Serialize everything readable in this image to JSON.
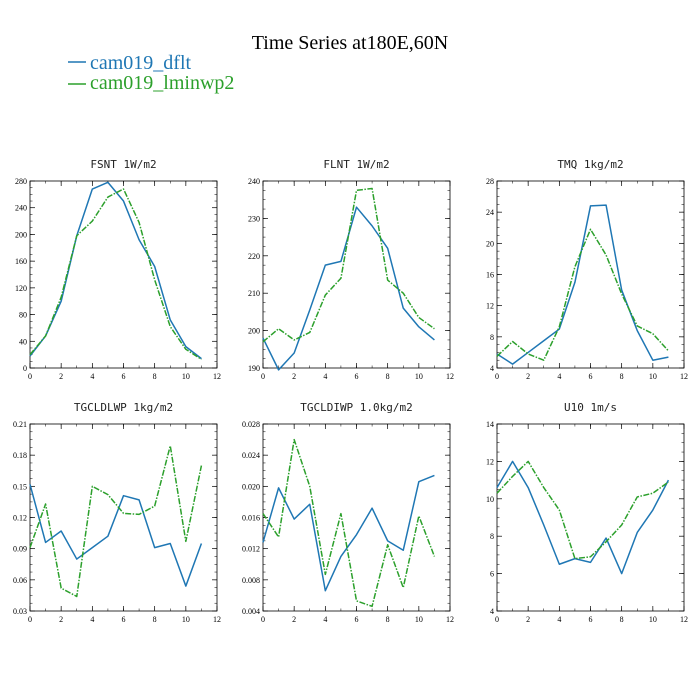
{
  "figure": {
    "title": "Time Series at180E,60N",
    "legend": [
      {
        "label": "cam019_dflt",
        "color": "#1f77b4",
        "dash": "solid"
      },
      {
        "label": "cam019_lminwp2",
        "color": "#2ca02c",
        "dash": "dashdot"
      }
    ]
  },
  "chart_data": [
    {
      "type": "line",
      "title": "FSNT   1W/m2",
      "x": [
        0,
        1,
        2,
        3,
        4,
        5,
        6,
        7,
        8,
        9,
        10,
        11
      ],
      "xlim": [
        0,
        12
      ],
      "xticks": [
        0,
        2,
        4,
        6,
        8,
        10,
        12
      ],
      "ylim": [
        0,
        280
      ],
      "yticks": [
        0,
        40,
        80,
        120,
        160,
        200,
        240,
        280
      ],
      "series": [
        {
          "name": "cam019_dflt",
          "values": [
            18,
            48,
            100,
            198,
            268,
            278,
            250,
            192,
            152,
            72,
            32,
            14
          ]
        },
        {
          "name": "cam019_lminwp2",
          "values": [
            20,
            48,
            106,
            198,
            220,
            256,
            268,
            218,
            132,
            62,
            28,
            13
          ]
        }
      ]
    },
    {
      "type": "line",
      "title": "FLNT   1W/m2",
      "x": [
        0,
        1,
        2,
        3,
        4,
        5,
        6,
        7,
        8,
        9,
        10,
        11
      ],
      "xlim": [
        0,
        12
      ],
      "xticks": [
        0,
        2,
        4,
        6,
        8,
        10,
        12
      ],
      "ylim": [
        190,
        240
      ],
      "yticks": [
        190,
        200,
        210,
        220,
        230,
        240
      ],
      "series": [
        {
          "name": "cam019_dflt",
          "values": [
            198,
            189.5,
            194,
            205.5,
            217.5,
            218.5,
            233,
            228,
            222,
            206,
            201,
            197.5
          ]
        },
        {
          "name": "cam019_lminwp2",
          "values": [
            197,
            200.5,
            197.5,
            199.5,
            209.5,
            214,
            237.5,
            238,
            213.5,
            210,
            203.5,
            200.5
          ]
        }
      ]
    },
    {
      "type": "line",
      "title": "TMQ   1kg/m2",
      "x": [
        0,
        1,
        2,
        3,
        4,
        5,
        6,
        7,
        8,
        9,
        10,
        11
      ],
      "xlim": [
        0,
        12
      ],
      "xticks": [
        0,
        2,
        4,
        6,
        8,
        10,
        12
      ],
      "ylim": [
        4,
        28
      ],
      "yticks": [
        4,
        8,
        12,
        16,
        20,
        24,
        28
      ],
      "series": [
        {
          "name": "cam019_dflt",
          "values": [
            5.8,
            4.5,
            6,
            7.5,
            9,
            15,
            24.8,
            24.9,
            14,
            8.8,
            5,
            5.4
          ]
        },
        {
          "name": "cam019_lminwp2",
          "values": [
            5.5,
            7.4,
            5.8,
            5,
            9.3,
            17,
            21.8,
            18.5,
            13.5,
            9.4,
            8.4,
            6.2
          ]
        }
      ]
    },
    {
      "type": "line",
      "title": "TGCLDLWP   1kg/m2",
      "x": [
        0,
        1,
        2,
        3,
        4,
        5,
        6,
        7,
        8,
        9,
        10,
        11
      ],
      "xlim": [
        0,
        12
      ],
      "xticks": [
        0,
        2,
        4,
        6,
        8,
        10,
        12
      ],
      "ylim": [
        0.03,
        0.21
      ],
      "yticks": [
        0.03,
        0.06,
        0.09,
        0.12,
        0.15,
        0.18,
        0.21
      ],
      "series": [
        {
          "name": "cam019_dflt",
          "values": [
            0.152,
            0.096,
            0.107,
            0.08,
            0.091,
            0.102,
            0.141,
            0.137,
            0.091,
            0.095,
            0.054,
            0.095
          ]
        },
        {
          "name": "cam019_lminwp2",
          "values": [
            0.091,
            0.133,
            0.052,
            0.044,
            0.15,
            0.142,
            0.124,
            0.123,
            0.131,
            0.189,
            0.097,
            0.17
          ]
        }
      ]
    },
    {
      "type": "line",
      "title": "TGCLDIWP   1.0kg/m2",
      "x": [
        0,
        1,
        2,
        3,
        4,
        5,
        6,
        7,
        8,
        9,
        10,
        11
      ],
      "xlim": [
        0,
        12
      ],
      "xticks": [
        0,
        2,
        4,
        6,
        8,
        10,
        12
      ],
      "ylim": [
        0.004,
        0.028
      ],
      "yticks": [
        0.004,
        0.008,
        0.012,
        0.016,
        0.02,
        0.024,
        0.028
      ],
      "series": [
        {
          "name": "cam019_dflt",
          "values": [
            0.0128,
            0.0198,
            0.0158,
            0.0177,
            0.0066,
            0.011,
            0.0138,
            0.0172,
            0.013,
            0.0118,
            0.0206,
            0.0214
          ]
        },
        {
          "name": "cam019_lminwp2",
          "values": [
            0.0165,
            0.0135,
            0.026,
            0.02,
            0.0087,
            0.0165,
            0.0053,
            0.0046,
            0.0125,
            0.007,
            0.0162,
            0.011
          ]
        }
      ]
    },
    {
      "type": "line",
      "title": "U10   1m/s",
      "x": [
        0,
        1,
        2,
        3,
        4,
        5,
        6,
        7,
        8,
        9,
        10,
        11
      ],
      "xlim": [
        0,
        12
      ],
      "xticks": [
        0,
        2,
        4,
        6,
        8,
        10,
        12
      ],
      "ylim": [
        4,
        14
      ],
      "yticks": [
        4,
        6,
        8,
        10,
        12,
        14
      ],
      "series": [
        {
          "name": "cam019_dflt",
          "values": [
            10.6,
            12,
            10.6,
            8.6,
            6.5,
            6.8,
            6.6,
            7.9,
            6,
            8.2,
            9.4,
            11
          ]
        },
        {
          "name": "cam019_lminwp2",
          "values": [
            10.3,
            11.2,
            12,
            10.6,
            9.4,
            6.8,
            6.9,
            7.7,
            8.6,
            10.1,
            10.3,
            10.9
          ]
        }
      ]
    }
  ]
}
